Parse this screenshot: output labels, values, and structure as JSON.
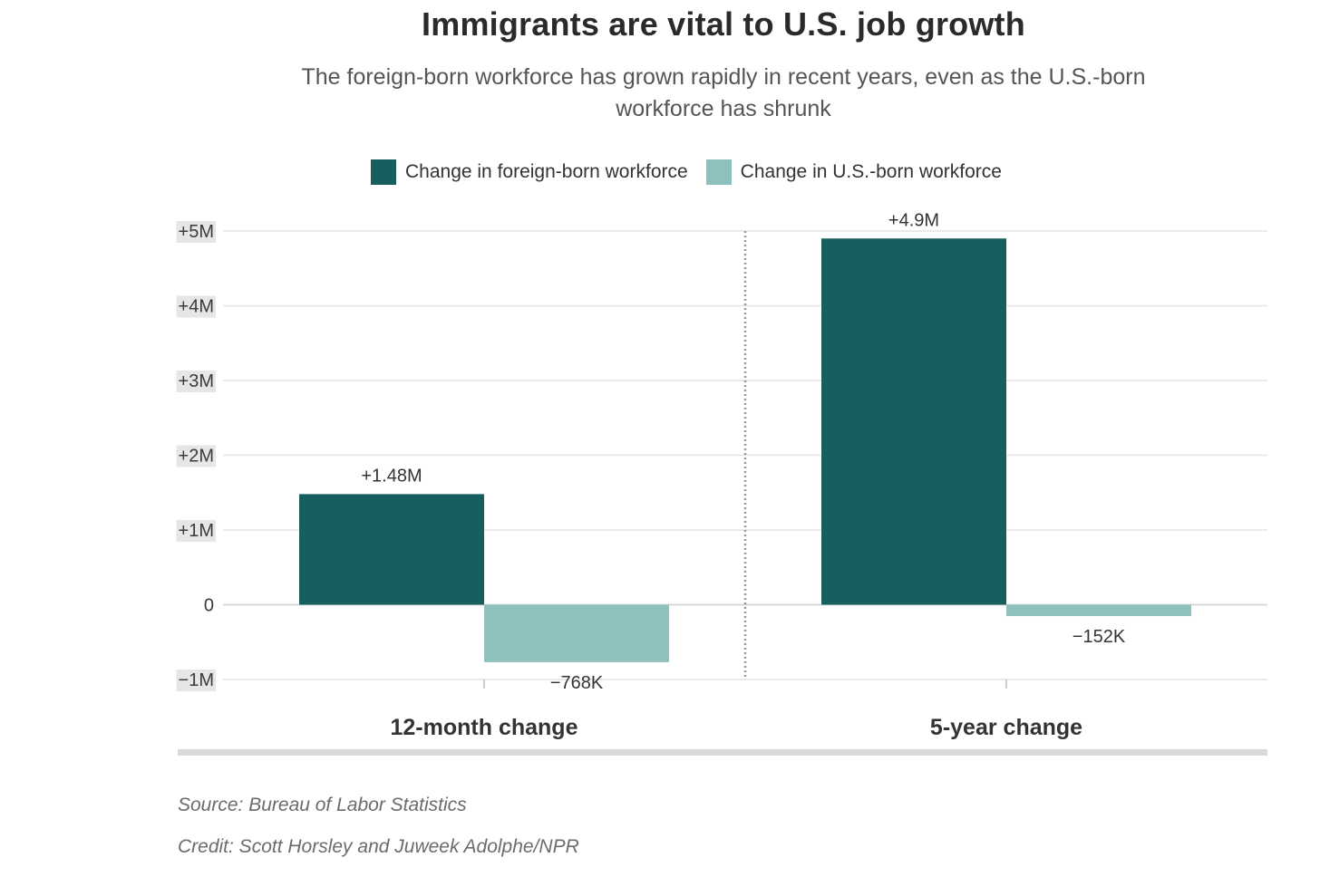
{
  "chart_data": {
    "type": "bar",
    "title": "Immigrants are vital to U.S. job growth",
    "subtitle": "The foreign-born workforce has grown rapidly in recent years, even as the U.S.-born workforce has shrunk",
    "categories": [
      "12-month change",
      "5-year change"
    ],
    "series": [
      {
        "name": "Change in foreign-born workforce",
        "color": "#165f5e",
        "values": [
          1480000,
          4900000
        ],
        "labels": [
          "+1.48M",
          "+4.9M"
        ]
      },
      {
        "name": "Change in U.S.-born workforce",
        "color": "#8ec0bd",
        "values": [
          -768000,
          -152000
        ],
        "labels": [
          "−768K",
          "−152K"
        ]
      }
    ],
    "ylim": [
      -1000000,
      5000000
    ],
    "yticks": [
      {
        "value": 5000000,
        "label": "+5M"
      },
      {
        "value": 4000000,
        "label": "+4M"
      },
      {
        "value": 3000000,
        "label": "+3M"
      },
      {
        "value": 2000000,
        "label": "+2M"
      },
      {
        "value": 1000000,
        "label": "+1M"
      },
      {
        "value": 0,
        "label": "0"
      },
      {
        "value": -1000000,
        "label": "−1M"
      }
    ],
    "xlabel": "",
    "ylabel": "",
    "grid": true,
    "legend_position": "top"
  },
  "footer": {
    "source": "Source: Bureau of Labor Statistics",
    "credit": "Credit: Scott Horsley and Juweek Adolphe/NPR"
  }
}
